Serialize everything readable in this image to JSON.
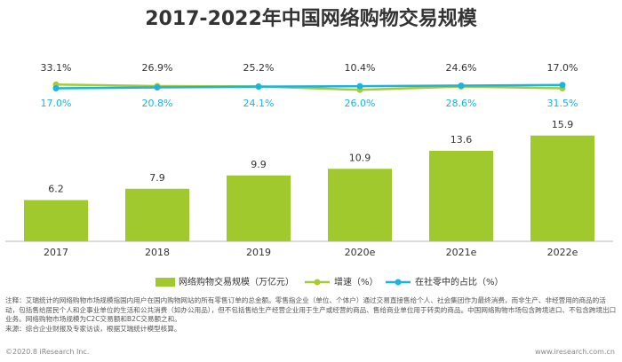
{
  "chart_data": {
    "type": "bar",
    "title": "2017-2022年中国网络购物交易规模",
    "categories": [
      "2017",
      "2018",
      "2019",
      "2020e",
      "2021e",
      "2022e"
    ],
    "ylim": [
      0,
      28
    ],
    "y2lim": [
      -640,
      160
    ],
    "series": [
      {
        "name": "网络购物交易规模（万亿元）",
        "type": "bar",
        "color": "#9fc92c",
        "values": [
          6.2,
          7.9,
          9.9,
          10.9,
          13.6,
          15.9
        ]
      },
      {
        "name": "增速（%）",
        "type": "line",
        "axis": "y2",
        "color": "#a8cb35",
        "values": [
          33.1,
          26.9,
          25.2,
          10.4,
          24.6,
          17.0
        ],
        "value_labels": [
          "33.1%",
          "26.9%",
          "25.2%",
          "10.4%",
          "24.6%",
          "17.0%"
        ]
      },
      {
        "name": "在社零中的占比（%）",
        "type": "line",
        "axis": "y2",
        "color": "#1ab4e0",
        "values": [
          17.0,
          20.8,
          24.1,
          26.0,
          28.6,
          31.5
        ],
        "value_labels": [
          "17.0%",
          "20.8%",
          "24.1%",
          "26.0%",
          "28.6%",
          "31.5%"
        ]
      }
    ],
    "note": "注释：艾瑞统计的网络购物市场规模指国内用户在国内购物网站的所有零售订单的总金额。零售指企业（单位、个体户）通过交易直接售给个人、社会集团作为最终消费，而非生产、非经营用的商品的活动，包括售给居民个人和企事业单位的生活和公共消费（如办公用品），但不包括售给生产经营企业用于生产或经营的商品、售给商业单位用于转卖的商品。中国网络购物市场包含跨境进口、不包含跨境出口业务。网络购物市场规模为C2C交易额和B2C交易额之和。",
    "source": "来源：综合企业财报及专家访谈，根据艾瑞统计模型核算。",
    "copyright": "©2020.8 iResearch Inc.",
    "website": "www.iresearch.com.cn"
  }
}
